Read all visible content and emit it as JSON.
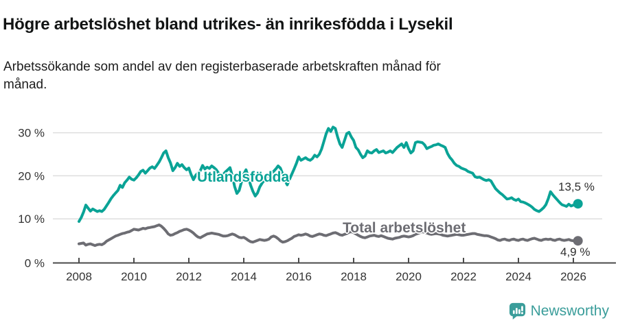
{
  "header": {
    "title": "Högre arbetslöshet bland utrikes- än inrikesfödda i Lysekil",
    "subtitle_line1": "Arbetssökande som andel av den registerbaserade arbetskraften månad för",
    "subtitle_line2": "månad."
  },
  "footer": {
    "brand": "Newsworthy",
    "brand_color": "#3a9d9a",
    "logo_icon": "newsworthy-speech-bubble-bar-chart-icon"
  },
  "colors": {
    "accent_teal": "#0aa396",
    "neutral_gray": "#6d6d73",
    "grid": "#dedede",
    "axis": "#4a4a4a",
    "tick_text": "#333333"
  },
  "chart_data": {
    "type": "line",
    "unit": "%",
    "x_ticks": [
      2008,
      2010,
      2012,
      2014,
      2016,
      2018,
      2020,
      2022,
      2024,
      2026
    ],
    "y_ticks": [
      0,
      10,
      20,
      30
    ],
    "y_tick_labels": [
      "0 %",
      "10 %",
      "20 %",
      "30 %"
    ],
    "ylim": [
      0,
      32
    ],
    "grid": "horizontal",
    "start_year": 2008,
    "interval_months": 1,
    "legend_position": "inline-labels",
    "series": [
      {
        "name": "Utlandsfödda",
        "color": "#0aa396",
        "end_label": "13,5 %",
        "end_value": 13.5,
        "values": [
          9.4,
          10.3,
          11.6,
          13.2,
          12.5,
          11.8,
          12.3,
          12.0,
          11.7,
          11.9,
          11.7,
          12.2,
          13.0,
          13.8,
          14.7,
          15.4,
          16.0,
          16.6,
          17.8,
          17.3,
          18.4,
          19.0,
          19.7,
          19.2,
          19.0,
          19.5,
          20.2,
          21.0,
          21.3,
          20.6,
          21.2,
          21.8,
          22.1,
          21.7,
          22.4,
          23.2,
          24.2,
          25.3,
          25.8,
          24.2,
          23.0,
          21.2,
          21.9,
          22.9,
          22.2,
          22.6,
          21.9,
          21.4,
          21.8,
          20.3,
          19.1,
          20.1,
          20.7,
          21.2,
          22.4,
          21.6,
          22.0,
          21.7,
          22.3,
          21.9,
          21.4,
          20.6,
          19.6,
          20.3,
          20.9,
          21.4,
          21.9,
          20.0,
          17.5,
          15.9,
          16.6,
          18.6,
          20.4,
          21.4,
          19.6,
          17.8,
          16.4,
          15.3,
          16.0,
          17.4,
          18.3,
          19.0,
          19.6,
          20.1,
          20.6,
          21.0,
          21.6,
          22.3,
          21.8,
          20.4,
          18.9,
          17.9,
          19.2,
          20.4,
          21.6,
          22.9,
          24.4,
          23.6,
          23.9,
          24.2,
          23.8,
          23.6,
          24.0,
          24.8,
          24.4,
          25.0,
          26.2,
          28.0,
          29.8,
          31.0,
          30.3,
          31.3,
          31.0,
          29.0,
          27.4,
          26.6,
          28.2,
          29.8,
          30.1,
          29.0,
          28.2,
          26.6,
          26.0,
          25.0,
          24.2,
          24.6,
          25.8,
          25.4,
          25.3,
          25.8,
          26.1,
          25.4,
          25.6,
          25.8,
          25.3,
          25.5,
          25.8,
          25.4,
          26.0,
          26.6,
          27.0,
          27.4,
          26.6,
          27.7,
          26.3,
          25.3,
          25.8,
          27.7,
          27.9,
          27.8,
          27.7,
          27.2,
          26.3,
          26.6,
          26.8,
          27.1,
          27.2,
          27.4,
          27.1,
          26.9,
          26.6,
          25.2,
          24.3,
          23.7,
          22.9,
          22.4,
          22.2,
          21.8,
          21.6,
          21.4,
          21.0,
          20.8,
          20.6,
          19.8,
          19.6,
          19.7,
          19.4,
          19.1,
          18.9,
          19.1,
          18.8,
          17.9,
          17.0,
          16.5,
          16.0,
          15.6,
          15.1,
          14.6,
          14.7,
          14.9,
          14.5,
          14.3,
          14.6,
          14.0,
          13.9,
          13.7,
          13.4,
          13.1,
          12.7,
          12.2,
          11.9,
          11.7,
          12.1,
          12.6,
          13.3,
          14.6,
          16.3,
          15.6,
          15.0,
          14.4,
          13.8,
          13.3,
          13.1,
          12.9,
          13.4,
          13.0,
          13.2,
          13.3,
          13.5
        ]
      },
      {
        "name": "Total arbetslöshet",
        "color": "#6d6d73",
        "end_label": "4,9 %",
        "end_value": 4.9,
        "values": [
          4.2,
          4.3,
          4.4,
          3.9,
          4.1,
          4.2,
          4.0,
          3.8,
          4.0,
          4.1,
          4.0,
          4.3,
          4.8,
          5.1,
          5.4,
          5.7,
          6.0,
          6.2,
          6.4,
          6.6,
          6.7,
          6.9,
          7.0,
          7.3,
          7.6,
          7.5,
          7.4,
          7.6,
          7.8,
          7.7,
          7.9,
          8.0,
          8.1,
          8.2,
          8.4,
          8.6,
          8.3,
          7.8,
          7.2,
          6.5,
          6.2,
          6.3,
          6.6,
          6.8,
          7.1,
          7.3,
          7.5,
          7.6,
          7.4,
          7.1,
          6.7,
          6.2,
          5.8,
          5.6,
          5.9,
          6.2,
          6.5,
          6.6,
          6.7,
          6.6,
          6.5,
          6.4,
          6.2,
          6.0,
          6.0,
          6.1,
          6.3,
          6.5,
          6.3,
          6.0,
          5.7,
          5.6,
          5.7,
          5.4,
          5.0,
          4.7,
          4.6,
          4.8,
          5.0,
          5.2,
          5.1,
          5.0,
          5.1,
          5.3,
          5.8,
          6.0,
          5.8,
          5.4,
          4.9,
          4.6,
          4.7,
          4.9,
          5.2,
          5.5,
          5.9,
          6.1,
          6.3,
          6.2,
          6.3,
          6.5,
          6.3,
          6.0,
          5.9,
          6.1,
          6.3,
          6.5,
          6.4,
          6.2,
          6.1,
          6.3,
          6.5,
          6.7,
          6.8,
          6.6,
          6.3,
          6.2,
          6.4,
          6.6,
          6.9,
          7.0,
          6.8,
          6.5,
          6.2,
          5.9,
          5.7,
          5.6,
          5.8,
          6.0,
          6.1,
          6.2,
          6.0,
          5.9,
          6.1,
          5.9,
          5.7,
          5.5,
          5.4,
          5.3,
          5.5,
          5.6,
          5.7,
          5.9,
          6.0,
          5.9,
          5.8,
          5.9,
          6.1,
          6.4,
          6.6,
          6.8,
          7.0,
          6.9,
          6.7,
          6.5,
          6.4,
          6.5,
          6.6,
          6.5,
          6.4,
          6.2,
          6.1,
          6.0,
          6.1,
          6.2,
          6.3,
          6.4,
          6.3,
          6.2,
          6.2,
          6.3,
          6.4,
          6.5,
          6.6,
          6.6,
          6.4,
          6.3,
          6.2,
          6.1,
          6.1,
          6.0,
          5.8,
          5.6,
          5.4,
          5.1,
          5.0,
          5.2,
          5.3,
          5.1,
          5.0,
          5.2,
          5.3,
          5.1,
          5.0,
          5.2,
          5.3,
          5.1,
          5.0,
          5.2,
          5.4,
          5.5,
          5.3,
          5.1,
          5.0,
          5.2,
          5.3,
          5.2,
          5.3,
          5.1,
          5.0,
          5.2,
          5.3,
          5.1,
          5.0,
          5.1,
          5.2,
          5.0,
          4.9,
          4.9,
          4.9
        ]
      }
    ]
  }
}
